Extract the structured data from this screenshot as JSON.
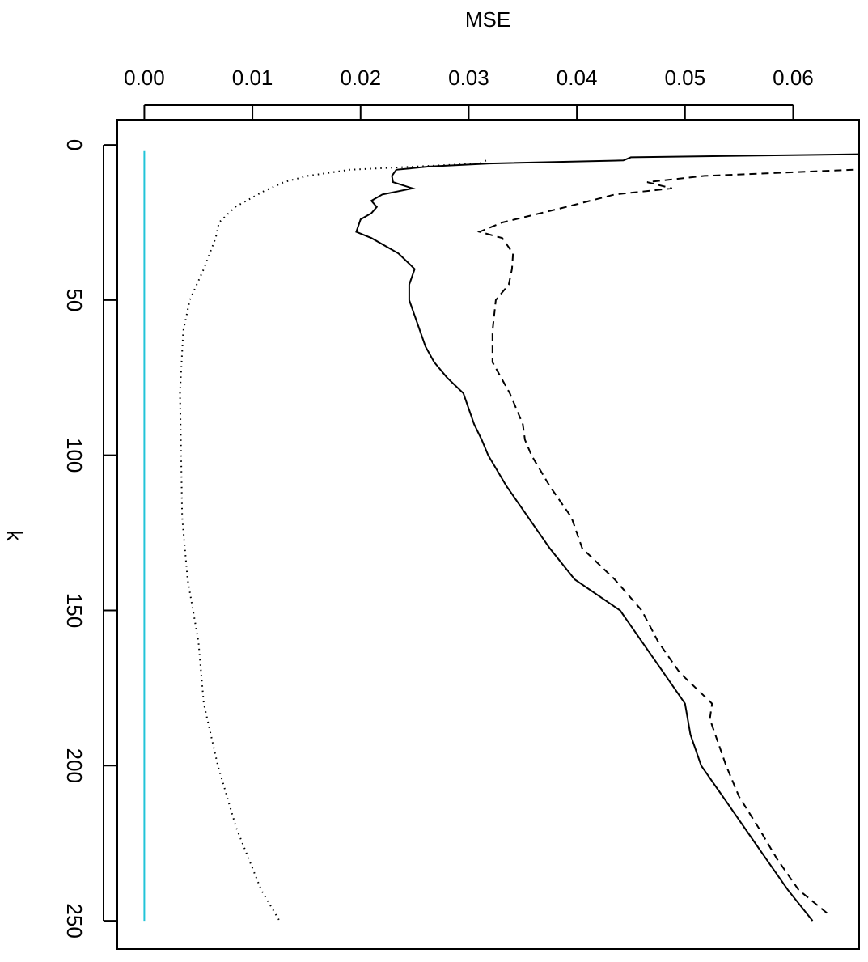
{
  "chart_data": {
    "type": "line",
    "orientation": "rotated",
    "y_label": "MSE",
    "x_label": "k",
    "xlim": [
      -8.1,
      259.1
    ],
    "xticks": [
      0,
      50,
      100,
      150,
      200,
      250
    ],
    "ylim": [
      -0.0025,
      0.0661
    ],
    "yticks": [
      {
        "value": 0,
        "label": "0.00"
      },
      0.01,
      0.02,
      0.03,
      0.04,
      0.05,
      0.06
    ],
    "series": [
      {
        "color": "#000000",
        "dash": "solid",
        "x": [
          3,
          4,
          5,
          6,
          7,
          8,
          10,
          12,
          14,
          16,
          18,
          20,
          22,
          24,
          26,
          28,
          30,
          35,
          40,
          45,
          50,
          55,
          60,
          65,
          70,
          75,
          80,
          85,
          90,
          95,
          100,
          110,
          120,
          130,
          140,
          150,
          160,
          170,
          180,
          190,
          200,
          210,
          220,
          230,
          240,
          250
        ],
        "values": [
          0.0661,
          0.045,
          0.0443,
          0.0319,
          0.0263,
          0.0233,
          0.0229,
          0.023,
          0.0248,
          0.022,
          0.021,
          0.0215,
          0.021,
          0.02,
          0.0198,
          0.0196,
          0.021,
          0.0235,
          0.025,
          0.0245,
          0.0245,
          0.025,
          0.0255,
          0.026,
          0.0268,
          0.028,
          0.0295,
          0.03,
          0.0305,
          0.0312,
          0.0318,
          0.0335,
          0.0355,
          0.0375,
          0.0398,
          0.044,
          0.046,
          0.048,
          0.05,
          0.0505,
          0.0515,
          0.0535,
          0.0555,
          0.0575,
          0.0595,
          0.0618
        ]
      },
      {
        "color": "#000000",
        "dash": "dashed",
        "x": [
          8,
          10,
          12,
          14,
          16,
          20,
          25,
          28,
          30,
          35,
          40,
          45,
          50,
          60,
          70,
          80,
          90,
          95,
          100,
          110,
          120,
          130,
          140,
          150,
          160,
          170,
          180,
          185,
          190,
          200,
          210,
          220,
          230,
          240,
          248
        ],
        "values": [
          0.0656,
          0.0518,
          0.0465,
          0.0488,
          0.0435,
          0.039,
          0.0331,
          0.031,
          0.0331,
          0.0341,
          0.034,
          0.0337,
          0.0325,
          0.0322,
          0.0322,
          0.0338,
          0.035,
          0.0352,
          0.0358,
          0.0375,
          0.0395,
          0.0405,
          0.0435,
          0.046,
          0.0475,
          0.0495,
          0.0525,
          0.0523,
          0.0528,
          0.0538,
          0.055,
          0.0568,
          0.0585,
          0.0605,
          0.0633
        ]
      },
      {
        "color": "#000000",
        "dash": "dotted",
        "x": [
          5,
          6,
          8,
          10,
          12,
          15,
          20,
          25,
          30,
          40,
          50,
          60,
          80,
          100,
          120,
          140,
          160,
          180,
          200,
          220,
          240,
          250
        ],
        "values": [
          0.0316,
          0.031,
          0.019,
          0.0151,
          0.0129,
          0.011,
          0.0084,
          0.0069,
          0.0066,
          0.0055,
          0.0042,
          0.0036,
          0.0033,
          0.0034,
          0.0035,
          0.004,
          0.005,
          0.0055,
          0.0068,
          0.0085,
          0.0108,
          0.0125
        ]
      },
      {
        "color": "#22c4d8",
        "dash": "solid",
        "x": [
          2,
          250
        ],
        "values": [
          0,
          0
        ]
      }
    ]
  }
}
